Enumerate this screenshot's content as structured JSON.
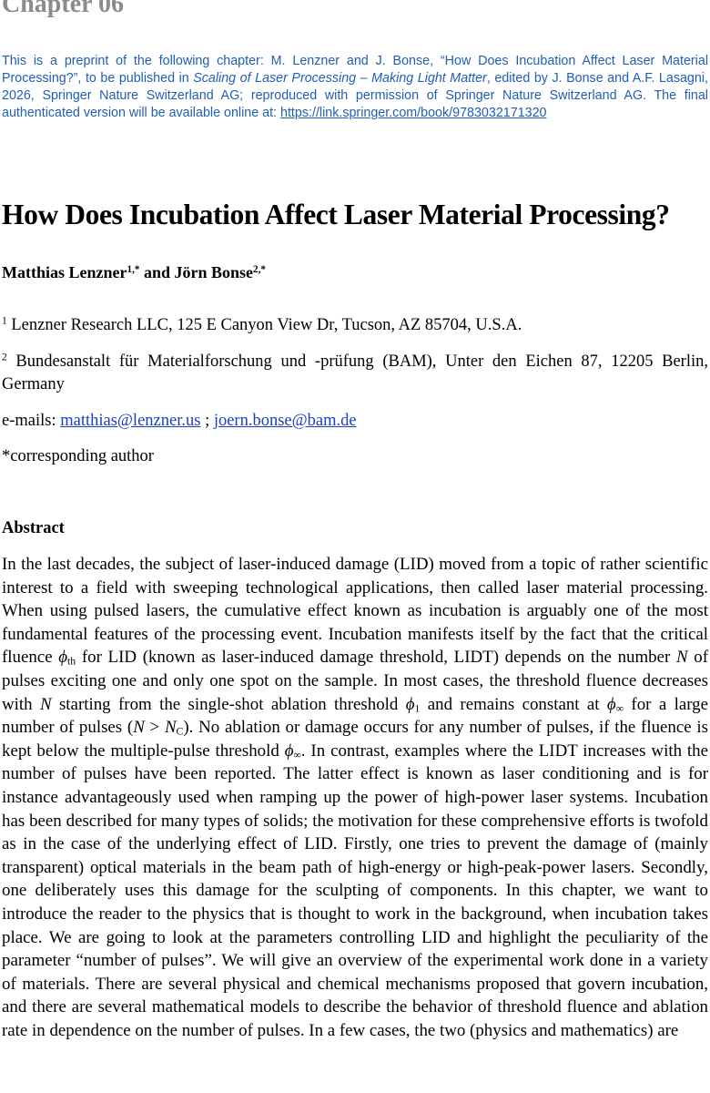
{
  "header": {
    "chapter": "Chapter 06"
  },
  "preprint": [
    "This is a preprint of the following chapter: M. Lenzner and J. Bonse, “How Does Incubation Affect Laser Material Processing?”, to be published in ",
    {
      "text": "Scaling of Laser Processing – Making Light Matter",
      "format": "italic"
    },
    ", edited by J. Bonse and A.F. Lasagni, 2026, Springer Nature Switzerland AG; reproduced with permission of Springer Nature Switzerland AG. The final authenticated version will be available online at: ",
    {
      "text": "https://link.springer.com/book/9783032171320",
      "format": "link"
    }
  ],
  "title": "How Does Incubation Affect Laser Material Processing?",
  "authors": [
    "Matthias Lenzner",
    {
      "text": "1,*",
      "format": "sup"
    },
    " and Jörn Bonse",
    {
      "text": "2,*",
      "format": "sup"
    }
  ],
  "affiliations": [
    [
      {
        "text": "1",
        "format": "sup"
      },
      " Lenzner Research LLC, 125 E Canyon View Dr, Tucson, AZ 85704, U.S.A."
    ],
    [
      {
        "text": "2",
        "format": "sup"
      },
      " Bundesanstalt für Materialforschung und -prüfung (BAM), Unter den Eichen 87, 12205 Berlin, Germany"
    ]
  ],
  "emails": [
    "e-mails: ",
    {
      "text": "matthias@lenzner.us",
      "format": "link"
    },
    " ; ",
    {
      "text": "joern.bonse@bam.de",
      "format": "link"
    }
  ],
  "corresponding": "*corresponding author",
  "abstract": {
    "heading": "Abstract",
    "body": [
      "In the last decades, the subject of laser-induced damage (LID) moved from a topic of rather scientific interest to a field with sweeping technological applications, then called laser material processing. When using pulsed lasers, the cumulative effect known as incubation is arguably one of the most fundamental features of the processing event. Incubation manifests itself by the fact that the critical fluence ",
      {
        "text": "ϕ",
        "format": "italic"
      },
      {
        "text": "th",
        "format": "sub"
      },
      " for LID (known as laser-induced damage threshold, LIDT) depends on the number ",
      {
        "text": "N",
        "format": "italic"
      },
      " of pulses exciting one and only one spot on the sample. In most cases, the threshold fluence decreases with ",
      {
        "text": "N",
        "format": "italic"
      },
      " starting from the single-shot ablation threshold ",
      {
        "text": "ϕ",
        "format": "italic"
      },
      {
        "text": "1",
        "format": "sub"
      },
      " and remains constant at ",
      {
        "text": "ϕ",
        "format": "italic"
      },
      {
        "text": "∞",
        "format": "sub"
      },
      " for a large number of pulses (",
      {
        "text": "N",
        "format": "italic"
      },
      " > ",
      {
        "text": "N",
        "format": "italic"
      },
      {
        "text": "C",
        "format": "sub"
      },
      "). No ablation or damage occurs for any number of pulses, if the fluence is kept below the multiple-pulse threshold ",
      {
        "text": "ϕ",
        "format": "italic"
      },
      {
        "text": "∞",
        "format": "sub"
      },
      ". In contrast, examples where the LIDT increases with the number of pulses have been reported. The latter effect is known as laser conditioning and is for instance advantageously used when ramping up the power of high-power laser systems. Incubation has been described for many types of solids; the motivation for these comprehensive efforts is twofold as in the case of the underlying effect of LID. Firstly, one tries to prevent the damage of (mainly transparent) optical materials in the beam path of high-energy or high-peak-power lasers. Secondly, one deliberately uses this damage for the sculpting of components. In this chapter, we want to introduce the reader to the physics that is thought to work in the background, when incubation takes place. We are going to look at the parameters controlling LID and highlight the peculiarity of the parameter “number of pulses”. We will give an overview of the experimental work done in a variety of materials. There are several physical and chemical mechanisms proposed that govern incubation, and there are several mathematical models to describe the behavior of threshold fluence and ablation rate in dependence on the number of pulses. In a few cases, the two (physics and mathematics) are"
    ]
  }
}
